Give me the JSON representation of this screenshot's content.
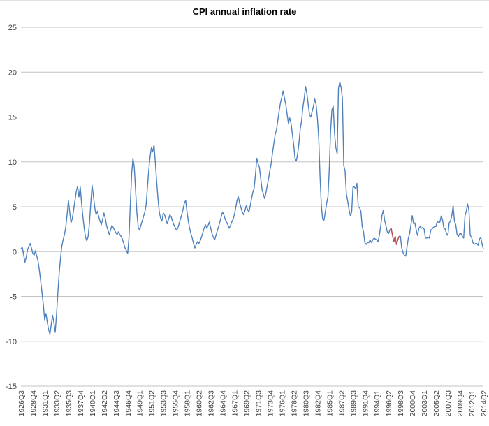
{
  "chart_data": {
    "type": "line",
    "title": "CPI annual inflation rate",
    "x_start": "1926Q3",
    "x_frequency": "quarterly",
    "x_tick_every": 9,
    "x_tick_labels": [
      "1926Q3",
      "1928Q4",
      "1931Q1",
      "1933Q2",
      "1935Q3",
      "1937Q4",
      "1940Q1",
      "1942Q2",
      "1944Q3",
      "1946Q4",
      "1949Q1",
      "1951Q2",
      "1953Q3",
      "1955Q4",
      "1958Q1",
      "1960Q2",
      "1962Q3",
      "1964Q4",
      "1967Q1",
      "1969Q2",
      "1971Q3",
      "1973Q4",
      "1976Q1",
      "1978Q2",
      "1980Q3",
      "1982Q4",
      "1985Q1",
      "1987Q2",
      "1989Q3",
      "1991Q4",
      "1994Q1",
      "1996Q2",
      "1998Q3",
      "2000Q4",
      "2003Q1",
      "2005Q2",
      "2007Q3",
      "2009Q4",
      "2012Q1",
      "2014Q2"
    ],
    "y_ticks": [
      -15,
      -10,
      -5,
      0,
      5,
      10,
      15,
      20,
      25
    ],
    "ylim": [
      -15,
      25
    ],
    "grid": true,
    "legend": "none",
    "grid_color": "#c3c3c3",
    "text_color": "#404040",
    "series": [
      {
        "name": "CPI annual inflation rate",
        "color": "#4F81BD",
        "values": [
          0.3,
          0.5,
          -0.3,
          -1.2,
          -0.6,
          0.2,
          0.6,
          0.9,
          0.4,
          -0.2,
          -0.4,
          0.1,
          -0.5,
          -1.1,
          -2.1,
          -3.3,
          -4.6,
          -5.9,
          -7.6,
          -6.9,
          -7.9,
          -8.7,
          -9.2,
          -8.1,
          -7.1,
          -7.9,
          -9.0,
          -7.0,
          -4.6,
          -2.4,
          -0.8,
          0.6,
          1.3,
          1.9,
          2.7,
          4.1,
          5.7,
          4.4,
          3.2,
          3.7,
          4.7,
          5.7,
          6.7,
          7.3,
          6.1,
          7.2,
          5.4,
          3.9,
          2.6,
          1.6,
          1.2,
          1.7,
          3.2,
          5.4,
          7.4,
          6.2,
          4.9,
          4.1,
          4.5,
          3.9,
          3.4,
          3.0,
          3.6,
          4.3,
          3.7,
          2.9,
          2.4,
          1.9,
          2.4,
          2.9,
          2.7,
          2.4,
          2.1,
          1.9,
          2.2,
          1.9,
          1.7,
          1.4,
          0.9,
          0.4,
          0.1,
          -0.2,
          1.6,
          5.2,
          8.6,
          10.4,
          9.4,
          6.8,
          4.3,
          2.7,
          2.4,
          2.9,
          3.4,
          3.9,
          4.4,
          5.2,
          7.2,
          9.1,
          10.6,
          11.6,
          11.1,
          11.9,
          9.9,
          7.8,
          5.9,
          4.4,
          3.7,
          3.4,
          4.3,
          4.1,
          3.6,
          3.1,
          3.6,
          4.1,
          3.9,
          3.4,
          3.0,
          2.7,
          2.4,
          2.6,
          3.1,
          3.6,
          4.1,
          4.7,
          5.4,
          5.7,
          4.5,
          3.4,
          2.6,
          2.0,
          1.5,
          0.9,
          0.4,
          0.8,
          1.1,
          0.9,
          1.2,
          1.6,
          2.1,
          2.6,
          3.0,
          2.6,
          2.9,
          3.3,
          2.6,
          2.0,
          1.6,
          1.3,
          1.8,
          2.3,
          2.8,
          3.3,
          3.9,
          4.4,
          4.1,
          3.6,
          3.3,
          3.0,
          2.6,
          2.9,
          3.3,
          3.6,
          4.1,
          4.9,
          5.7,
          6.1,
          5.4,
          4.9,
          4.4,
          4.1,
          4.6,
          5.1,
          4.7,
          4.4,
          5.1,
          5.9,
          6.6,
          7.1,
          8.6,
          10.4,
          9.8,
          9.4,
          8.1,
          6.9,
          6.4,
          5.9,
          6.6,
          7.4,
          8.2,
          9.1,
          9.9,
          11.1,
          12.1,
          13.1,
          13.6,
          14.7,
          15.7,
          16.6,
          17.2,
          17.9,
          17.1,
          16.4,
          15.3,
          14.3,
          14.9,
          14.3,
          13.1,
          11.9,
          10.4,
          10.1,
          10.9,
          12.1,
          13.7,
          14.6,
          16.1,
          17.1,
          18.4,
          17.6,
          16.4,
          15.3,
          15.0,
          15.6,
          16.2,
          17.0,
          16.4,
          14.9,
          12.6,
          8.4,
          5.1,
          3.6,
          3.5,
          4.4,
          5.4,
          6.1,
          9.1,
          13.4,
          15.8,
          16.2,
          13.2,
          11.6,
          10.9,
          18.2,
          18.9,
          18.3,
          17.0,
          9.6,
          9.0,
          6.4,
          5.6,
          4.7,
          4.0,
          4.4,
          7.2,
          7.2,
          7.0,
          7.6,
          5.0,
          4.9,
          4.5,
          2.8,
          2.2,
          1.0,
          0.8,
          1.0,
          1.0,
          1.3,
          1.0,
          1.3,
          1.5,
          1.4,
          1.3,
          1.1,
          1.8,
          2.8,
          4.0,
          4.6,
          3.5,
          2.9,
          2.2,
          2.0,
          2.4,
          2.6,
          1.8,
          1.1,
          1.7,
          0.8,
          1.3,
          1.7,
          1.7,
          0.4,
          -0.1,
          -0.4,
          -0.5,
          0.5,
          1.5,
          2.0,
          3.0,
          4.0,
          3.1,
          3.2,
          2.4,
          1.8,
          2.6,
          2.8,
          2.6,
          2.7,
          2.5,
          1.5,
          1.5,
          1.6,
          1.5,
          2.4,
          2.5,
          2.7,
          2.8,
          2.8,
          3.4,
          3.2,
          3.3,
          4.0,
          3.5,
          2.6,
          2.5,
          2.0,
          1.8,
          3.2,
          3.4,
          4.0,
          5.1,
          3.4,
          3.0,
          1.9,
          1.7,
          2.0,
          2.0,
          1.7,
          1.5,
          4.0,
          4.5,
          5.3,
          4.6,
          1.8,
          1.6,
          1.0,
          0.8,
          0.9,
          0.9,
          0.7,
          1.4,
          1.6,
          0.8,
          0.3
        ]
      }
    ],
    "highlight_segment": {
      "color": "#C0504D",
      "start_index": 280,
      "end_index": 287
    }
  }
}
